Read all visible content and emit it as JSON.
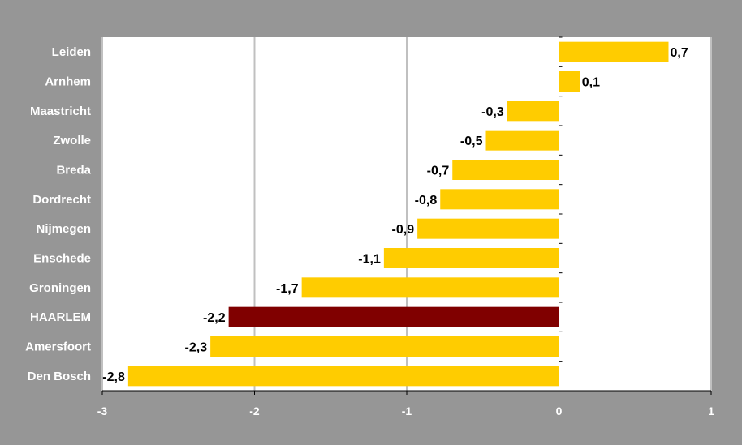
{
  "chart_data": {
    "type": "bar",
    "orientation": "horizontal",
    "title": "",
    "xlabel": "",
    "ylabel": "",
    "categories": [
      "Leiden",
      "Arnhem",
      "Maastricht",
      "Zwolle",
      "Breda",
      "Dordrecht",
      "Nijmegen",
      "Enschede",
      "Groningen",
      "HAARLEM",
      "Amersfoort",
      "Den Bosch"
    ],
    "values": [
      0.72,
      0.14,
      -0.34,
      -0.48,
      -0.7,
      -0.78,
      -0.93,
      -1.15,
      -1.69,
      -2.17,
      -2.29,
      -2.83
    ],
    "value_labels": [
      "0,7",
      "0,1",
      "-0,3",
      "-0,5",
      "-0,7",
      "-0,8",
      "-0,9",
      "-1,1",
      "-1,7",
      "-2,2",
      "-2,3",
      "-2,8"
    ],
    "highlight_index": 9,
    "xlim": [
      -3,
      1
    ],
    "x_ticks": [
      -3,
      -2,
      -1,
      0,
      1
    ],
    "x_tick_labels": [
      "-3",
      "-2",
      "-1",
      "0",
      "1"
    ],
    "grid": "vertical",
    "legend": "none",
    "colors": {
      "bar": "#FFCC00",
      "highlight": "#800000",
      "plot_background": "#FFFFFF",
      "figure_background": "#969696",
      "gridline": "#C0C0C0",
      "category_text": "#FFFFFF",
      "value_text": "#000000",
      "tick_text": "#FFFFFF"
    }
  }
}
